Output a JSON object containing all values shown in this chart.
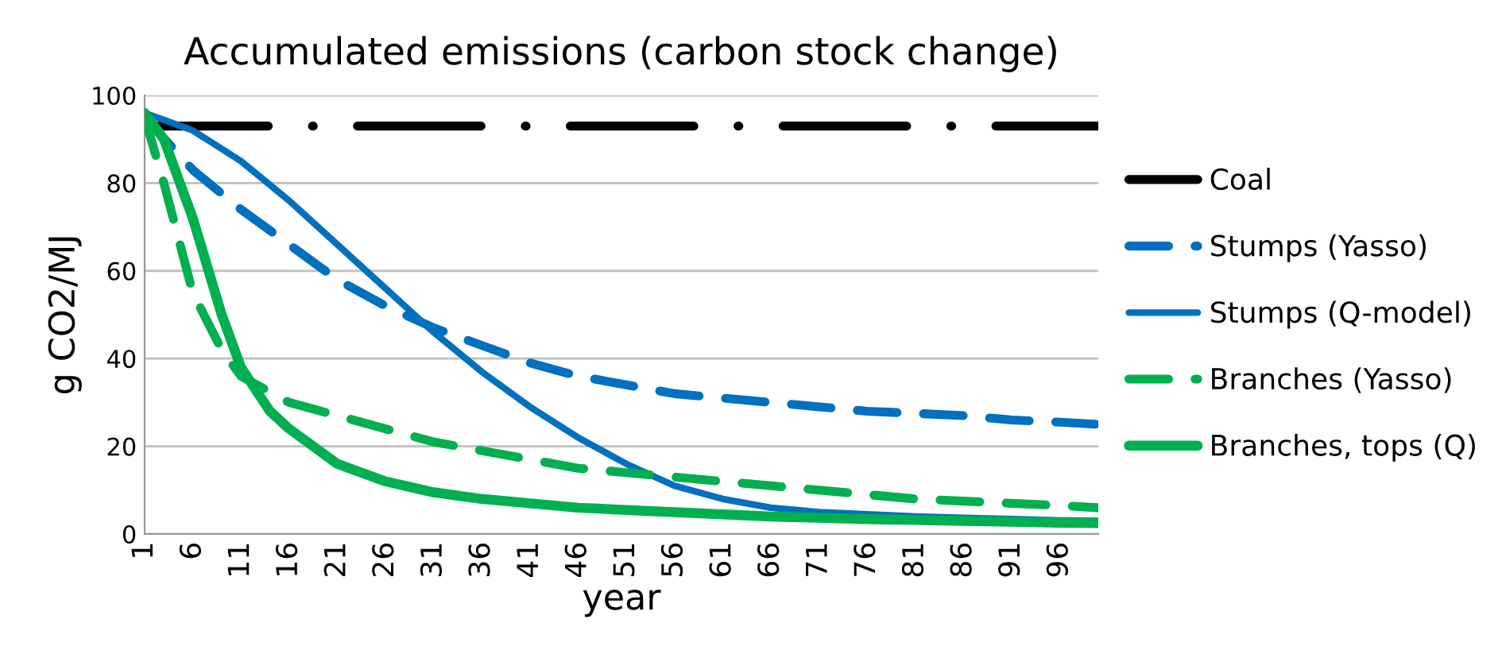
{
  "chart_data": {
    "type": "line",
    "title": "Accumulated emissions (carbon stock change)",
    "xlabel": "year",
    "ylabel": "g CO2/MJ",
    "xlim": [
      1,
      100
    ],
    "xticks": [
      1,
      6,
      11,
      16,
      21,
      26,
      31,
      36,
      41,
      46,
      51,
      56,
      61,
      66,
      71,
      76,
      81,
      86,
      91,
      96
    ],
    "ylim": [
      0,
      100
    ],
    "yticks": [
      0,
      20,
      40,
      60,
      80,
      100
    ],
    "grid": "y",
    "legend": "right",
    "marker": "none",
    "series": [
      {
        "name": "Coal",
        "color": "#000000",
        "line_style": "dashdot",
        "x": [
          1,
          100
        ],
        "values": [
          93,
          93
        ]
      },
      {
        "name": "Stumps (Yasso)",
        "color": "#0070c0",
        "line_style": "dashed",
        "x": [
          1,
          6,
          11,
          16,
          21,
          26,
          31,
          36,
          41,
          46,
          51,
          56,
          61,
          66,
          71,
          76,
          81,
          86,
          91,
          96,
          100
        ],
        "values": [
          95,
          83,
          74,
          66,
          58,
          52,
          47,
          43,
          39,
          36,
          34,
          32,
          31,
          30,
          29,
          28,
          27.5,
          27,
          26,
          25.5,
          25
        ]
      },
      {
        "name": "Stumps (Q-model)",
        "color": "#0070c0",
        "line_style": "solid",
        "x": [
          1,
          6,
          11,
          16,
          21,
          26,
          31,
          36,
          41,
          46,
          51,
          56,
          61,
          66,
          71,
          76,
          81,
          86,
          91,
          96,
          100
        ],
        "values": [
          96,
          92,
          85,
          76,
          66,
          56,
          46,
          37,
          29,
          22,
          16,
          11,
          8,
          6,
          5,
          4.5,
          4,
          3.7,
          3.4,
          3.1,
          3
        ]
      },
      {
        "name": "Branches (Yasso)",
        "color": "#00b050",
        "line_style": "dashed",
        "x": [
          1,
          3,
          6,
          9,
          11,
          16,
          21,
          26,
          31,
          36,
          41,
          46,
          51,
          56,
          61,
          66,
          71,
          76,
          81,
          86,
          91,
          96,
          100
        ],
        "values": [
          95,
          80,
          55,
          42,
          36,
          30,
          27,
          24,
          21,
          19,
          17,
          15,
          14,
          13,
          12,
          11,
          10,
          9,
          8,
          7.5,
          7,
          6.5,
          6
        ]
      },
      {
        "name": "Branches, tops (Q)",
        "color": "#00b050",
        "line_style": "solid",
        "x": [
          1,
          3,
          6,
          9,
          11,
          14,
          16,
          21,
          26,
          31,
          36,
          41,
          46,
          51,
          56,
          61,
          66,
          71,
          76,
          81,
          86,
          91,
          96,
          100
        ],
        "values": [
          96,
          90,
          72,
          50,
          38,
          28,
          24,
          16,
          12,
          9.5,
          8,
          7,
          6,
          5.5,
          5,
          4.5,
          4,
          3.7,
          3.4,
          3.2,
          3,
          2.8,
          2.6,
          2.5
        ]
      }
    ]
  }
}
